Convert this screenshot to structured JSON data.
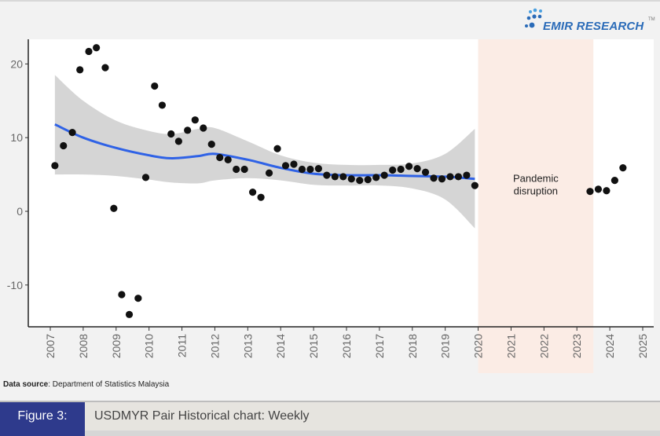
{
  "brand": {
    "name": "EMIR RESEARCH",
    "tm": "TM",
    "color": "#2a6bb8"
  },
  "source": {
    "label": "Data source",
    "text": ": Department of Statistics Malaysia"
  },
  "figure": {
    "label": "Figure 3:",
    "title": "USDMYR Pair Historical chart: Weekly",
    "label_bg": "#2e3a8c"
  },
  "chart_data": {
    "type": "scatter",
    "title": "",
    "xlabel": "",
    "ylabel": "",
    "xlim": [
      2006.4,
      2025.3
    ],
    "ylim": [
      -15.7,
      23.3
    ],
    "x_ticks": [
      2007,
      2008,
      2009,
      2010,
      2011,
      2012,
      2013,
      2014,
      2015,
      2016,
      2017,
      2018,
      2019,
      2020,
      2021,
      2022,
      2023,
      2024,
      2025
    ],
    "y_ticks": [
      -10,
      0,
      10,
      20
    ],
    "grid": false,
    "point_color": "#111111",
    "points": [
      [
        2007.14,
        6.2
      ],
      [
        2007.4,
        8.9
      ],
      [
        2007.67,
        10.7
      ],
      [
        2007.9,
        19.2
      ],
      [
        2008.17,
        21.7
      ],
      [
        2008.4,
        22.2
      ],
      [
        2008.67,
        19.5
      ],
      [
        2008.93,
        0.4
      ],
      [
        2009.17,
        -11.3
      ],
      [
        2009.4,
        -14.0
      ],
      [
        2009.67,
        -11.8
      ],
      [
        2009.9,
        4.6
      ],
      [
        2010.17,
        17.0
      ],
      [
        2010.4,
        14.4
      ],
      [
        2010.67,
        10.5
      ],
      [
        2010.9,
        9.5
      ],
      [
        2011.17,
        11.0
      ],
      [
        2011.4,
        12.4
      ],
      [
        2011.65,
        11.3
      ],
      [
        2011.9,
        9.1
      ],
      [
        2012.15,
        7.3
      ],
      [
        2012.4,
        7.0
      ],
      [
        2012.65,
        5.7
      ],
      [
        2012.9,
        5.7
      ],
      [
        2013.15,
        2.6
      ],
      [
        2013.4,
        1.9
      ],
      [
        2013.65,
        5.2
      ],
      [
        2013.9,
        8.5
      ],
      [
        2014.15,
        6.2
      ],
      [
        2014.4,
        6.4
      ],
      [
        2014.65,
        5.7
      ],
      [
        2014.9,
        5.7
      ],
      [
        2015.15,
        5.8
      ],
      [
        2015.4,
        4.9
      ],
      [
        2015.65,
        4.7
      ],
      [
        2015.9,
        4.7
      ],
      [
        2016.15,
        4.4
      ],
      [
        2016.4,
        4.2
      ],
      [
        2016.65,
        4.3
      ],
      [
        2016.9,
        4.6
      ],
      [
        2017.15,
        4.9
      ],
      [
        2017.4,
        5.6
      ],
      [
        2017.65,
        5.7
      ],
      [
        2017.9,
        6.1
      ],
      [
        2018.15,
        5.8
      ],
      [
        2018.4,
        5.3
      ],
      [
        2018.65,
        4.5
      ],
      [
        2018.9,
        4.4
      ],
      [
        2019.15,
        4.7
      ],
      [
        2019.4,
        4.7
      ],
      [
        2019.65,
        4.9
      ],
      [
        2019.9,
        3.5
      ],
      [
        2023.4,
        2.7
      ],
      [
        2023.65,
        3.0
      ],
      [
        2023.9,
        2.8
      ],
      [
        2024.15,
        4.2
      ],
      [
        2024.4,
        5.9
      ]
    ],
    "trend": {
      "method": "smooth",
      "color": "#2f62e6",
      "band_color": "#d3d3d3",
      "x": [
        2007.14,
        2008,
        2009,
        2010,
        2010.7,
        2011.5,
        2012,
        2013,
        2014,
        2015,
        2016,
        2017,
        2018,
        2019,
        2019.9
      ],
      "y": [
        11.8,
        10.0,
        8.6,
        7.6,
        7.2,
        7.5,
        7.8,
        7.0,
        5.9,
        5.1,
        4.9,
        4.9,
        4.8,
        4.7,
        4.4
      ],
      "upper": [
        18.5,
        15.0,
        12.3,
        10.9,
        10.5,
        11.2,
        11.3,
        9.5,
        7.6,
        6.6,
        6.3,
        6.3,
        6.5,
        7.8,
        11.2
      ],
      "lower": [
        5.0,
        5.0,
        4.8,
        4.3,
        3.9,
        3.8,
        4.2,
        4.5,
        4.2,
        3.6,
        3.5,
        3.5,
        3.1,
        1.6,
        -2.3
      ]
    },
    "annotations": [
      {
        "type": "shaded-region",
        "x_range": [
          2020.0,
          2023.5
        ],
        "color": "#fbece5",
        "label": "Pandemic\ndisruption",
        "label_lines": [
          "Pandemic",
          "disruption"
        ]
      }
    ]
  }
}
